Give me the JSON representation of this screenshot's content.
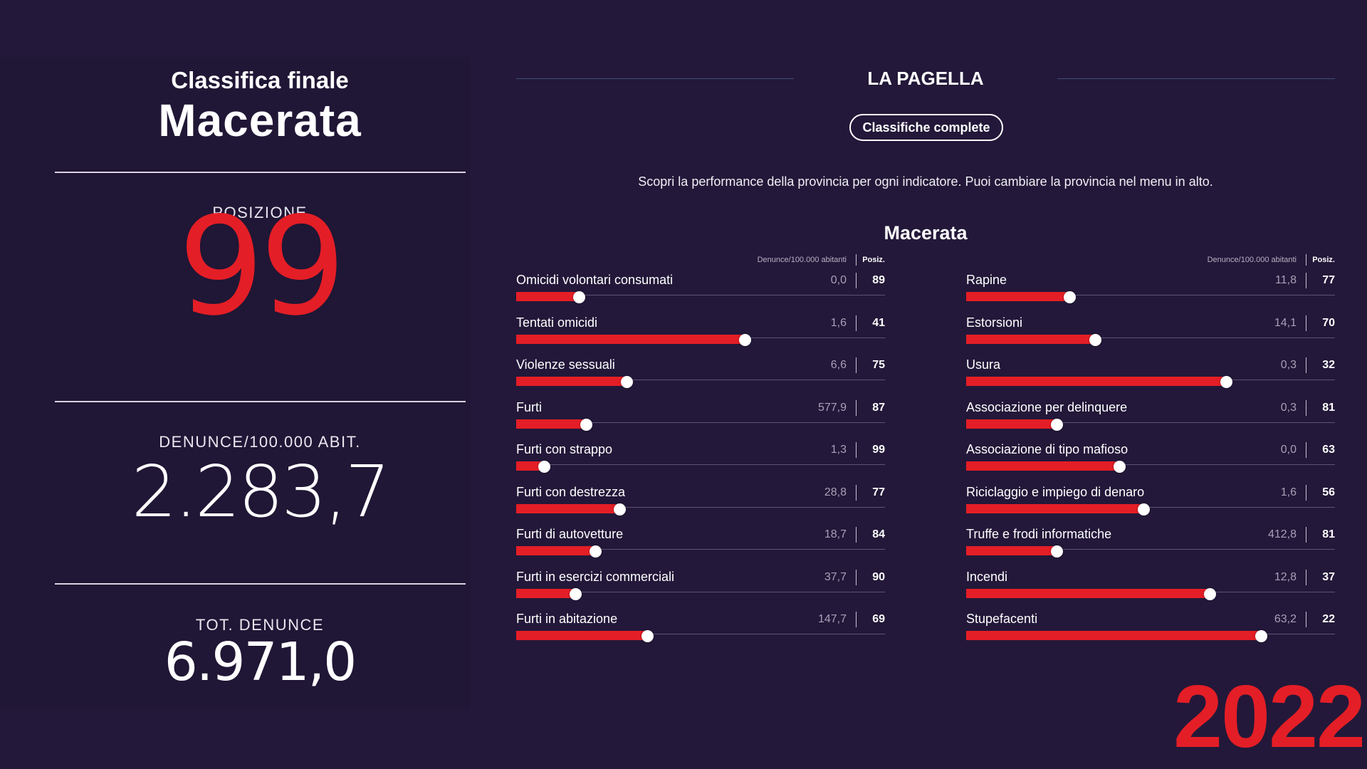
{
  "left": {
    "subtitle": "Classifica finale",
    "city": "Macerata",
    "position_label": "POSIZIONE",
    "position_value": "99",
    "denunce_label": "DENUNCE/100.000 ABIT.",
    "denunce_value": "2.283,7",
    "tot_label": "TOT. DENUNCE",
    "tot_value": "6.971,0"
  },
  "right": {
    "heading": "LA PAGELLA",
    "button_label": "Classifiche complete",
    "intro": "Scopri la performance della provincia per ogni indicatore. Puoi cambiare la provincia nel menu in alto.",
    "city": "Macerata",
    "col_header_value": "Denunce/100.000 abitanti",
    "col_header_rank": "Posiz."
  },
  "indicators_left": [
    {
      "name": "Omicidi volontari consumati",
      "value": "0,0",
      "rank": "89",
      "bar": 0.17
    },
    {
      "name": "Tentati omicidi",
      "value": "1,6",
      "rank": "41",
      "bar": 0.62
    },
    {
      "name": "Violenze sessuali",
      "value": "6,6",
      "rank": "75",
      "bar": 0.3
    },
    {
      "name": "Furti",
      "value": "577,9",
      "rank": "87",
      "bar": 0.19
    },
    {
      "name": "Furti con strappo",
      "value": "1,3",
      "rank": "99",
      "bar": 0.075
    },
    {
      "name": "Furti con destrezza",
      "value": "28,8",
      "rank": "77",
      "bar": 0.28
    },
    {
      "name": "Furti di autovetture",
      "value": "18,7",
      "rank": "84",
      "bar": 0.215
    },
    {
      "name": "Furti in esercizi commerciali",
      "value": "37,7",
      "rank": "90",
      "bar": 0.16
    },
    {
      "name": "Furti in abitazione",
      "value": "147,7",
      "rank": "69",
      "bar": 0.355
    }
  ],
  "indicators_right": [
    {
      "name": "Rapine",
      "value": "11,8",
      "rank": "77",
      "bar": 0.28
    },
    {
      "name": "Estorsioni",
      "value": "14,1",
      "rank": "70",
      "bar": 0.35
    },
    {
      "name": "Usura",
      "value": "0,3",
      "rank": "32",
      "bar": 0.705
    },
    {
      "name": "Associazione per delinquere",
      "value": "0,3",
      "rank": "81",
      "bar": 0.245
    },
    {
      "name": "Associazione di tipo mafioso",
      "value": "0,0",
      "rank": "63",
      "bar": 0.415
    },
    {
      "name": "Riciclaggio e impiego di denaro",
      "value": "1,6",
      "rank": "56",
      "bar": 0.48
    },
    {
      "name": "Truffe e frodi informatiche",
      "value": "412,8",
      "rank": "81",
      "bar": 0.245
    },
    {
      "name": "Incendi",
      "value": "12,8",
      "rank": "37",
      "bar": 0.66
    },
    {
      "name": "Stupefacenti",
      "value": "63,2",
      "rank": "22",
      "bar": 0.8
    }
  ],
  "year": "2022",
  "colors": {
    "background": "#231839",
    "accent": "#e41e26"
  }
}
